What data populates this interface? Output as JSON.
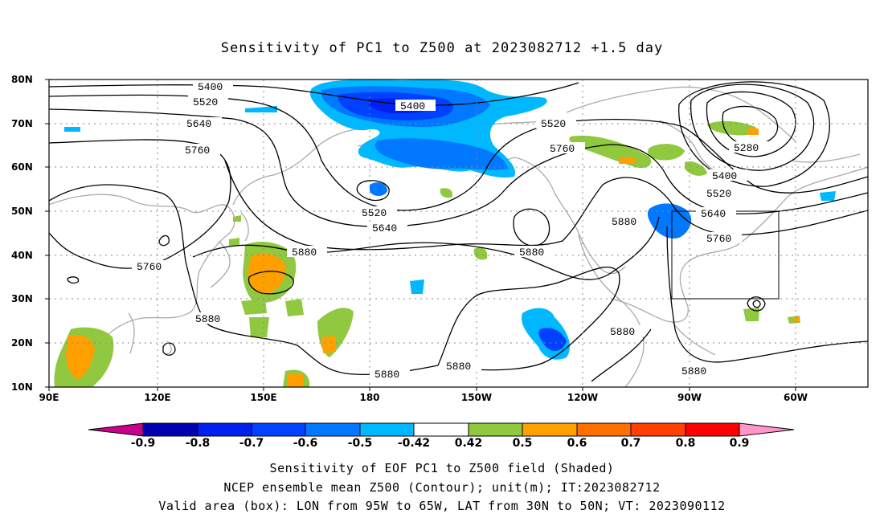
{
  "title": "Sensitivity of PC1 to Z500 at 2023082712 +1.5 day",
  "map": {
    "lat_labels": [
      "80N",
      "70N",
      "60N",
      "50N",
      "40N",
      "30N",
      "20N",
      "10N"
    ],
    "lon_labels": [
      "90E",
      "120E",
      "150E",
      "180",
      "150W",
      "120W",
      "90W",
      "60W"
    ],
    "extent": {
      "lon_min_east": 90,
      "lon_max_east": 320,
      "lat_min": 10,
      "lat_max": 80
    },
    "box": {
      "lon_from": "95W",
      "lon_to": "65W",
      "lat_from": "30N",
      "lat_to": "50N"
    },
    "contour_labels": [
      "5400",
      "5520",
      "5640",
      "5760",
      "5400",
      "5520",
      "5760",
      "5520",
      "5640",
      "5880",
      "5760",
      "5880",
      "5880",
      "5880",
      "5880",
      "5280",
      "5400",
      "5520",
      "5640",
      "5760",
      "5880",
      "5880",
      "5880"
    ],
    "contour_color": "#000000",
    "coast_color": "#aaaaaa"
  },
  "colorbar": {
    "labels": [
      "-0.9",
      "-0.8",
      "-0.7",
      "-0.6",
      "-0.5",
      "-0.42",
      "0.42",
      "0.5",
      "0.6",
      "0.7",
      "0.8",
      "0.9"
    ],
    "colors": [
      "#0000b0",
      "#0020f0",
      "#0040ff",
      "#0078ff",
      "#00b8ff",
      "#ffffff",
      "#90c840",
      "#ffa000",
      "#ff7000",
      "#ff4000",
      "#ff0000"
    ],
    "end_low": "#c8008c",
    "end_high": "#ff96c8"
  },
  "captions": {
    "line1": "Sensitivity of EOF PC1 to Z500 field (Shaded)",
    "line2": "NCEP ensemble mean Z500 (Contour); unit(m); IT:2023082712",
    "line3": "Valid area (box): LON from 95W to 65W, LAT from 30N to 50N; VT: 2023090112"
  }
}
